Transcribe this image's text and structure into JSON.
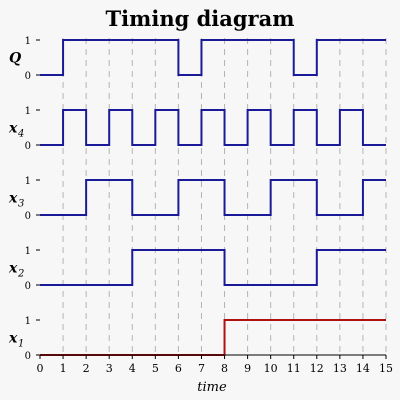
{
  "title": "Timing diagram",
  "axis_label": "time",
  "colors": {
    "signal": "#1a1a99",
    "highlight_signal": "#b01010",
    "grid": "#b4b4b4",
    "axis": "#000000",
    "background": "#f7f7f7"
  },
  "chart_data": {
    "type": "timing",
    "xlim": [
      0,
      15
    ],
    "ticks": [
      "0",
      "1",
      "2",
      "3",
      "4",
      "5",
      "6",
      "7",
      "8",
      "9",
      "10",
      "11",
      "12",
      "13",
      "14",
      "15"
    ],
    "levels": [
      "0",
      "1"
    ],
    "grid": "vertical-dashed",
    "signals": [
      {
        "name": "Q",
        "sub": "",
        "color": "signal",
        "segments": [
          [
            0,
            1,
            0
          ],
          [
            1,
            6,
            1
          ],
          [
            6,
            7,
            0
          ],
          [
            7,
            11,
            1
          ],
          [
            11,
            12,
            0
          ],
          [
            12,
            13,
            1
          ],
          [
            13,
            15,
            1
          ]
        ],
        "values": [
          0,
          1,
          1,
          1,
          1,
          1,
          0,
          1,
          1,
          1,
          1,
          0,
          1,
          1,
          1
        ]
      },
      {
        "name": "x",
        "sub": "4",
        "color": "signal",
        "values": [
          0,
          1,
          0,
          1,
          0,
          1,
          0,
          1,
          0,
          1,
          0,
          1,
          0,
          1,
          0
        ]
      },
      {
        "name": "x",
        "sub": "3",
        "color": "signal",
        "values": [
          0,
          0,
          1,
          1,
          0,
          0,
          1,
          1,
          0,
          0,
          1,
          1,
          0,
          0,
          1
        ]
      },
      {
        "name": "x",
        "sub": "2",
        "color": "signal",
        "values": [
          0,
          0,
          0,
          0,
          1,
          1,
          1,
          1,
          0,
          0,
          0,
          0,
          1,
          1,
          1
        ]
      },
      {
        "name": "x",
        "sub": "1",
        "color": "highlight_signal",
        "values": [
          0,
          0,
          0,
          0,
          0,
          0,
          0,
          0,
          1,
          1,
          1,
          1,
          1,
          1,
          1
        ]
      }
    ]
  }
}
